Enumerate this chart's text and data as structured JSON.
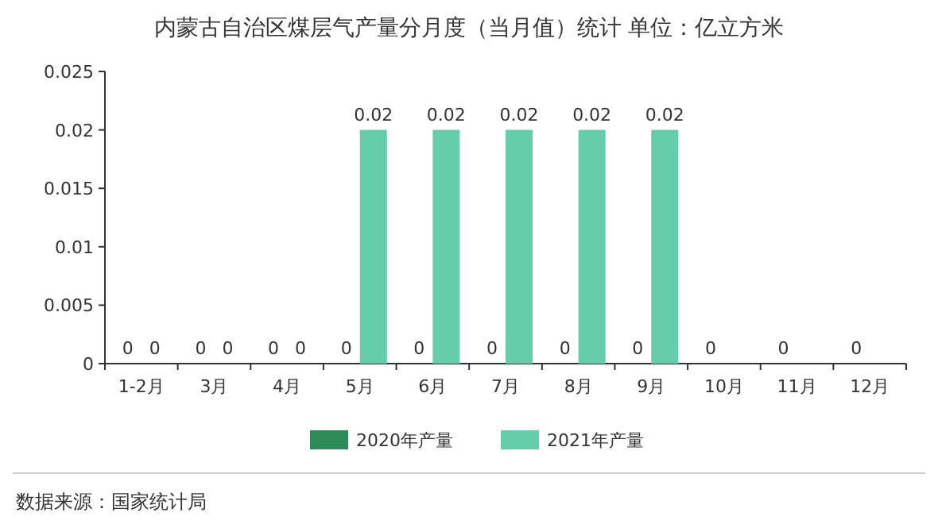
{
  "chart_data": {
    "type": "bar",
    "title": "内蒙古自治区煤层气产量分月度（当月值）统计  单位：亿立方米",
    "categories": [
      "1-2月",
      "3月",
      "4月",
      "5月",
      "6月",
      "7月",
      "8月",
      "9月",
      "10月",
      "11月",
      "12月"
    ],
    "series": [
      {
        "name": "2020年产量",
        "color": "#2e8b57",
        "values": [
          0,
          0,
          0,
          0,
          0,
          0,
          0,
          0,
          0,
          0,
          0
        ]
      },
      {
        "name": "2021年产量",
        "color": "#66cdaa",
        "values": [
          0,
          0,
          0,
          0.02,
          0.02,
          0.02,
          0.02,
          0.02,
          null,
          null,
          null
        ]
      }
    ],
    "ylim": [
      0,
      0.025
    ],
    "yticks": [
      0,
      0.005,
      0.01,
      0.015,
      0.02,
      0.025
    ],
    "data_labels": true,
    "legend": "bottom",
    "grid": false,
    "annotations": [
      "数据来源：国家统计局"
    ]
  }
}
